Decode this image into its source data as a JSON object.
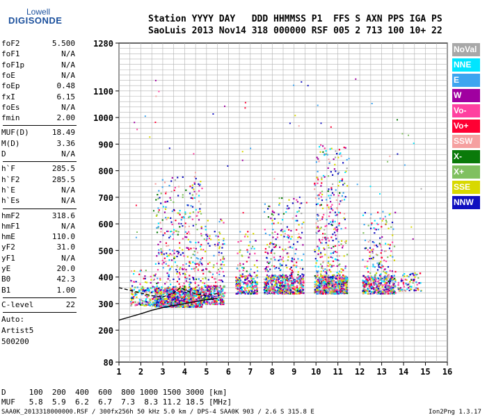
{
  "logo": {
    "top": "Lowell",
    "main": "DIGISONDE"
  },
  "header": {
    "line1": "Station YYYY DAY   DDD HHMMSS P1  FFS S AXN PPS IGA PS",
    "line2": "SaoLuis 2013 Nov14 318 000000 RSF 005 2 713 100 10+ 22"
  },
  "params_group1": [
    {
      "key": "foF2",
      "value": "5.500"
    },
    {
      "key": "foF1",
      "value": "N/A"
    },
    {
      "key": "foF1p",
      "value": "N/A"
    },
    {
      "key": "foE",
      "value": "N/A"
    },
    {
      "key": "foEp",
      "value": "0.48"
    },
    {
      "key": "fxI",
      "value": "6.15"
    },
    {
      "key": "foEs",
      "value": "N/A"
    },
    {
      "key": "fmin",
      "value": "2.00"
    }
  ],
  "params_group2": [
    {
      "key": "MUF(D)",
      "value": "18.49"
    },
    {
      "key": "M(D)",
      "value": "3.36"
    },
    {
      "key": "D",
      "value": "N/A"
    }
  ],
  "params_group3": [
    {
      "key": "h`F",
      "value": "285.5"
    },
    {
      "key": "h`F2",
      "value": "285.5"
    },
    {
      "key": "h`E",
      "value": "N/A"
    },
    {
      "key": "h`Es",
      "value": "N/A"
    }
  ],
  "params_group4": [
    {
      "key": "hmF2",
      "value": "318.6"
    },
    {
      "key": "hmF1",
      "value": "N/A"
    },
    {
      "key": "hmE",
      "value": "110.0"
    },
    {
      "key": "yF2",
      "value": "31.0"
    },
    {
      "key": "yF1",
      "value": "N/A"
    },
    {
      "key": "yE",
      "value": "20.0"
    },
    {
      "key": "B0",
      "value": "42.3"
    },
    {
      "key": "B1",
      "value": "1.00"
    }
  ],
  "params_group5": [
    {
      "key": "C-level",
      "value": "22"
    }
  ],
  "autoscaling": {
    "line1": "Auto:",
    "line2": "Artist5",
    "line3": "500200"
  },
  "bottom": {
    "d_row": "D     100  200  400  600  800 1000 1500 3000 [km]",
    "muf_row": "MUF   5.8  5.9  6.2  6.7  7.3  8.3 11.2 18.5 [MHz]",
    "footer_left": "SAA0K_2013318000000.RSF / 300fx256h 50 kHz 5.0 km / DPS-4 SAA0K 903 / 2.6 S 315.8 E",
    "footer_right": "Ion2Png 1.3.17"
  },
  "legend": [
    {
      "label": "NoVal",
      "color": "#a8a8a8"
    },
    {
      "label": "NNE",
      "color": "#00e5ff"
    },
    {
      "label": "E",
      "color": "#3da5f0"
    },
    {
      "label": "W",
      "color": "#a000a0"
    },
    {
      "label": "Vo-",
      "color": "#ff40a0"
    },
    {
      "label": "Vo+",
      "color": "#ff0033"
    },
    {
      "label": "SSW",
      "color": "#f5a0a0"
    },
    {
      "label": "X-",
      "color": "#0a7a0a"
    },
    {
      "label": "X+",
      "color": "#80c060"
    },
    {
      "label": "SSE",
      "color": "#d8d800"
    },
    {
      "label": "NNW",
      "color": "#1010c0"
    }
  ],
  "chart_data": {
    "type": "scatter",
    "xlim": [
      1,
      16
    ],
    "ylim_label": [
      80,
      1280
    ],
    "x_ticks": [
      1,
      2,
      3,
      4,
      5,
      6,
      7,
      8,
      9,
      10,
      11,
      12,
      13,
      14,
      15,
      16
    ],
    "y_ticks": [
      {
        "value": 80,
        "label": "80"
      },
      {
        "value": 200,
        "label": "200"
      },
      {
        "value": 300,
        "label": "300"
      },
      {
        "value": 400,
        "label": "400"
      },
      {
        "value": 500,
        "label": "500"
      },
      {
        "value": 600,
        "label": "600"
      },
      {
        "value": 700,
        "label": "700"
      },
      {
        "value": 800,
        "label": "800"
      },
      {
        "value": 900,
        "label": "900"
      },
      {
        "value": 1000,
        "label": "1000"
      },
      {
        "value": 1100,
        "label": "1100"
      },
      {
        "value": 1280,
        "label": "1280"
      }
    ],
    "grid": true,
    "echo_clusters": [
      {
        "f": [
          1.5,
          2.6
        ],
        "h": [
          295,
          430
        ]
      },
      {
        "f": [
          2.6,
          4.8
        ],
        "h": [
          290,
          780
        ]
      },
      {
        "f": [
          4.8,
          5.8
        ],
        "h": [
          300,
          620
        ]
      },
      {
        "f": [
          6.3,
          7.3
        ],
        "h": [
          340,
          580
        ]
      },
      {
        "f": [
          7.6,
          9.4
        ],
        "h": [
          340,
          700
        ]
      },
      {
        "f": [
          9.9,
          11.4
        ],
        "h": [
          340,
          900
        ]
      },
      {
        "f": [
          12.1,
          13.6
        ],
        "h": [
          340,
          650
        ]
      },
      {
        "f": [
          13.7,
          14.8
        ],
        "h": [
          350,
          420
        ]
      }
    ],
    "trace_virtual_height": [
      {
        "f": 1.0,
        "h": 360
      },
      {
        "f": 1.5,
        "h": 350
      },
      {
        "f": 2.0,
        "h": 340
      },
      {
        "f": 2.5,
        "h": 330
      },
      {
        "f": 3.0,
        "h": 325
      },
      {
        "f": 3.5,
        "h": 340
      },
      {
        "f": 3.8,
        "h": 360
      },
      {
        "f": 4.2,
        "h": 345
      },
      {
        "f": 4.6,
        "h": 335
      },
      {
        "f": 5.0,
        "h": 330
      },
      {
        "f": 5.5,
        "h": 338
      }
    ],
    "trace_true_height": [
      {
        "f": 1.0,
        "h": 238
      },
      {
        "f": 1.5,
        "h": 250
      },
      {
        "f": 2.0,
        "h": 262
      },
      {
        "f": 2.5,
        "h": 275
      },
      {
        "f": 3.0,
        "h": 285
      },
      {
        "f": 3.5,
        "h": 293
      },
      {
        "f": 4.0,
        "h": 300
      },
      {
        "f": 4.5,
        "h": 308
      },
      {
        "f": 5.0,
        "h": 315
      },
      {
        "f": 5.5,
        "h": 319
      }
    ]
  }
}
